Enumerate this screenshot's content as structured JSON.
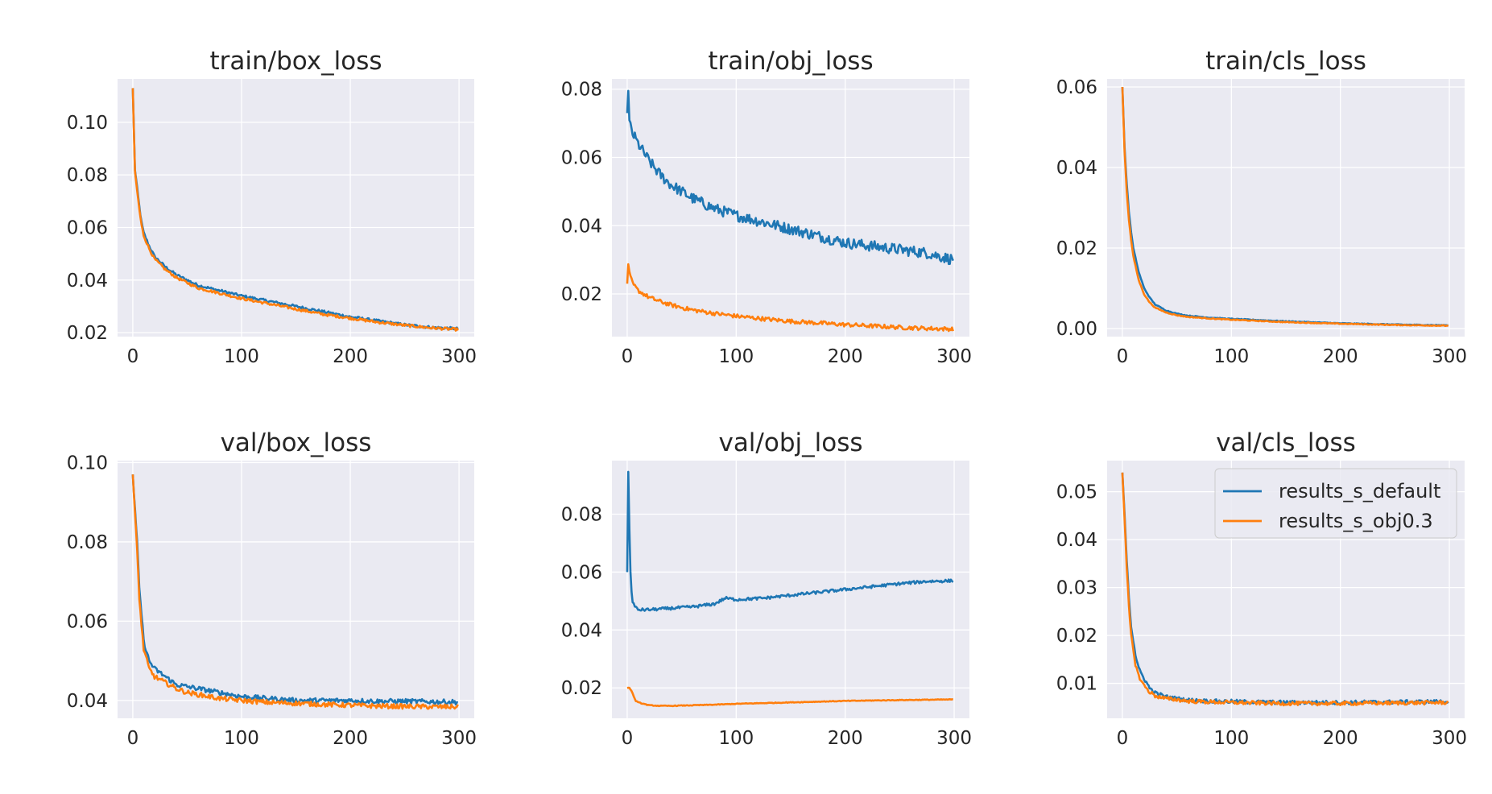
{
  "chart_data": [
    {
      "type": "line",
      "title": "train/box_loss",
      "xlim": [
        -14,
        314
      ],
      "ylim": [
        0.0185,
        0.1165
      ],
      "xticks": [
        0,
        100,
        200,
        300
      ],
      "yticks": [
        0.02,
        0.04,
        0.06,
        0.08,
        0.1
      ],
      "ytick_labels": [
        "0.02",
        "0.04",
        "0.06",
        "0.08",
        "0.10"
      ],
      "grid": true,
      "series": [
        {
          "name": "results_s_default",
          "color": "#1f77b4",
          "noise": 0.0005,
          "x": [
            0,
            2,
            4,
            6,
            8,
            10,
            15,
            20,
            30,
            40,
            50,
            60,
            80,
            100,
            125,
            150,
            175,
            200,
            225,
            250,
            275,
            299
          ],
          "y": [
            0.113,
            0.082,
            0.075,
            0.068,
            0.062,
            0.058,
            0.053,
            0.049,
            0.045,
            0.042,
            0.04,
            0.038,
            0.036,
            0.034,
            0.032,
            0.03,
            0.028,
            0.026,
            0.0245,
            0.023,
            0.022,
            0.0215
          ]
        },
        {
          "name": "results_s_obj0.3",
          "color": "#ff7f0e",
          "noise": 0.0005,
          "x": [
            0,
            2,
            4,
            6,
            8,
            10,
            15,
            20,
            30,
            40,
            50,
            60,
            80,
            100,
            125,
            150,
            175,
            200,
            225,
            250,
            275,
            299
          ],
          "y": [
            0.113,
            0.081,
            0.074,
            0.067,
            0.061,
            0.057,
            0.052,
            0.048,
            0.044,
            0.041,
            0.039,
            0.037,
            0.035,
            0.033,
            0.031,
            0.029,
            0.027,
            0.0255,
            0.024,
            0.0228,
            0.0218,
            0.0212
          ]
        }
      ]
    },
    {
      "type": "line",
      "title": "train/obj_loss",
      "xlim": [
        -14,
        314
      ],
      "ylim": [
        0.0075,
        0.083
      ],
      "xticks": [
        0,
        100,
        200,
        300
      ],
      "yticks": [
        0.02,
        0.04,
        0.06,
        0.08
      ],
      "ytick_labels": [
        "0.02",
        "0.04",
        "0.06",
        "0.08"
      ],
      "grid": true,
      "series": [
        {
          "name": "results_s_default",
          "color": "#1f77b4",
          "noise": 0.0016,
          "x": [
            0,
            1,
            2,
            5,
            10,
            20,
            30,
            40,
            50,
            60,
            80,
            100,
            125,
            150,
            175,
            200,
            225,
            250,
            275,
            299
          ],
          "y": [
            0.073,
            0.079,
            0.07,
            0.067,
            0.064,
            0.059,
            0.055,
            0.052,
            0.05,
            0.048,
            0.045,
            0.043,
            0.041,
            0.039,
            0.037,
            0.035,
            0.034,
            0.033,
            0.032,
            0.03
          ]
        },
        {
          "name": "results_s_obj0.3",
          "color": "#ff7f0e",
          "noise": 0.0006,
          "x": [
            0,
            1,
            2,
            5,
            10,
            20,
            30,
            40,
            50,
            60,
            80,
            100,
            125,
            150,
            175,
            200,
            225,
            250,
            275,
            299
          ],
          "y": [
            0.023,
            0.029,
            0.026,
            0.023,
            0.021,
            0.019,
            0.0178,
            0.0168,
            0.016,
            0.0153,
            0.0143,
            0.0135,
            0.0127,
            0.012,
            0.0115,
            0.011,
            0.0106,
            0.0102,
            0.0099,
            0.0097
          ]
        }
      ]
    },
    {
      "type": "line",
      "title": "train/cls_loss",
      "xlim": [
        -14,
        314
      ],
      "ylim": [
        -0.002,
        0.062
      ],
      "xticks": [
        0,
        100,
        200,
        300
      ],
      "yticks": [
        0.0,
        0.02,
        0.04,
        0.06
      ],
      "ytick_labels": [
        "0.00",
        "0.02",
        "0.04",
        "0.06"
      ],
      "grid": true,
      "series": [
        {
          "name": "results_s_default",
          "color": "#1f77b4",
          "noise": 0.0001,
          "x": [
            0,
            2,
            4,
            6,
            8,
            10,
            15,
            20,
            25,
            30,
            40,
            50,
            60,
            80,
            100,
            150,
            200,
            250,
            299
          ],
          "y": [
            0.06,
            0.045,
            0.036,
            0.029,
            0.024,
            0.02,
            0.014,
            0.01,
            0.0077,
            0.006,
            0.0045,
            0.0037,
            0.0032,
            0.0027,
            0.0024,
            0.0018,
            0.0013,
            0.001,
            0.0008
          ]
        },
        {
          "name": "results_s_obj0.3",
          "color": "#ff7f0e",
          "noise": 0.0001,
          "x": [
            0,
            2,
            4,
            6,
            8,
            10,
            15,
            20,
            25,
            30,
            40,
            50,
            60,
            80,
            100,
            150,
            200,
            250,
            299
          ],
          "y": [
            0.06,
            0.044,
            0.034,
            0.027,
            0.022,
            0.018,
            0.012,
            0.0085,
            0.0065,
            0.0052,
            0.004,
            0.0033,
            0.0029,
            0.0025,
            0.0022,
            0.0016,
            0.0012,
            0.0009,
            0.0007
          ]
        }
      ]
    },
    {
      "type": "line",
      "title": "val/box_loss",
      "xlim": [
        -14,
        314
      ],
      "ylim": [
        0.0355,
        0.1005
      ],
      "xticks": [
        0,
        100,
        200,
        300
      ],
      "yticks": [
        0.04,
        0.06,
        0.08,
        0.1
      ],
      "ytick_labels": [
        "0.04",
        "0.06",
        "0.08",
        "0.10"
      ],
      "grid": true,
      "series": [
        {
          "name": "results_s_default",
          "color": "#1f77b4",
          "noise": 0.0006,
          "x": [
            0,
            2,
            4,
            6,
            8,
            10,
            15,
            20,
            30,
            40,
            50,
            60,
            80,
            100,
            125,
            150,
            175,
            200,
            225,
            250,
            275,
            299
          ],
          "y": [
            0.097,
            0.088,
            0.08,
            0.068,
            0.062,
            0.055,
            0.05,
            0.048,
            0.046,
            0.044,
            0.0435,
            0.043,
            0.042,
            0.041,
            0.0405,
            0.04,
            0.04,
            0.04,
            0.0398,
            0.0398,
            0.0397,
            0.0396
          ]
        },
        {
          "name": "results_s_obj0.3",
          "color": "#ff7f0e",
          "noise": 0.0006,
          "x": [
            0,
            2,
            4,
            6,
            8,
            10,
            15,
            20,
            30,
            40,
            50,
            60,
            80,
            100,
            125,
            150,
            175,
            200,
            225,
            250,
            275,
            299
          ],
          "y": [
            0.097,
            0.087,
            0.078,
            0.066,
            0.059,
            0.053,
            0.048,
            0.046,
            0.0445,
            0.043,
            0.042,
            0.0415,
            0.0405,
            0.04,
            0.0395,
            0.0393,
            0.039,
            0.0388,
            0.0386,
            0.0385,
            0.0384,
            0.0384
          ]
        }
      ]
    },
    {
      "type": "line",
      "title": "val/obj_loss",
      "xlim": [
        -14,
        314
      ],
      "ylim": [
        0.0095,
        0.0985
      ],
      "xticks": [
        0,
        100,
        200,
        300
      ],
      "yticks": [
        0.02,
        0.04,
        0.06,
        0.08
      ],
      "ytick_labels": [
        "0.02",
        "0.04",
        "0.06",
        "0.08"
      ],
      "grid": true,
      "series": [
        {
          "name": "results_s_default",
          "color": "#1f77b4",
          "noise": 0.0005,
          "x": [
            0,
            1,
            2,
            3,
            4,
            5,
            7,
            10,
            20,
            40,
            60,
            80,
            90,
            100,
            125,
            150,
            175,
            200,
            225,
            250,
            275,
            299
          ],
          "y": [
            0.06,
            0.095,
            0.075,
            0.06,
            0.053,
            0.05,
            0.048,
            0.047,
            0.047,
            0.0475,
            0.048,
            0.049,
            0.051,
            0.0505,
            0.051,
            0.052,
            0.053,
            0.054,
            0.055,
            0.056,
            0.0568,
            0.057
          ]
        },
        {
          "name": "results_s_obj0.3",
          "color": "#ff7f0e",
          "noise": 0.00012,
          "x": [
            0,
            2,
            4,
            6,
            8,
            10,
            15,
            20,
            30,
            40,
            60,
            80,
            100,
            150,
            200,
            250,
            299
          ],
          "y": [
            0.02,
            0.02,
            0.019,
            0.017,
            0.0155,
            0.015,
            0.0145,
            0.014,
            0.0138,
            0.0138,
            0.014,
            0.0142,
            0.0145,
            0.015,
            0.0155,
            0.0158,
            0.016
          ]
        }
      ]
    },
    {
      "type": "line",
      "title": "val/cls_loss",
      "xlim": [
        -14,
        314
      ],
      "ylim": [
        0.0027,
        0.0565
      ],
      "xticks": [
        0,
        100,
        200,
        300
      ],
      "yticks": [
        0.01,
        0.02,
        0.03,
        0.04,
        0.05
      ],
      "ytick_labels": [
        "0.01",
        "0.02",
        "0.03",
        "0.04",
        "0.05"
      ],
      "grid": true,
      "legend": {
        "placement": "upper-right",
        "entries": [
          {
            "label": "results_s_default",
            "color": "#1f77b4"
          },
          {
            "label": "results_s_obj0.3",
            "color": "#ff7f0e"
          }
        ]
      },
      "series": [
        {
          "name": "results_s_default",
          "color": "#1f77b4",
          "noise": 0.0004,
          "x": [
            0,
            2,
            4,
            6,
            8,
            10,
            12,
            15,
            20,
            25,
            30,
            40,
            50,
            60,
            80,
            100,
            150,
            200,
            250,
            299
          ],
          "y": [
            0.054,
            0.045,
            0.036,
            0.028,
            0.022,
            0.019,
            0.016,
            0.013,
            0.011,
            0.009,
            0.008,
            0.0072,
            0.0068,
            0.0065,
            0.0063,
            0.0062,
            0.006,
            0.006,
            0.0061,
            0.0062
          ]
        },
        {
          "name": "results_s_obj0.3",
          "color": "#ff7f0e",
          "noise": 0.0004,
          "x": [
            0,
            2,
            4,
            6,
            8,
            10,
            12,
            15,
            20,
            25,
            30,
            40,
            50,
            60,
            80,
            100,
            150,
            200,
            250,
            299
          ],
          "y": [
            0.054,
            0.044,
            0.034,
            0.026,
            0.02,
            0.017,
            0.014,
            0.0115,
            0.0095,
            0.0082,
            0.0074,
            0.0068,
            0.0066,
            0.0063,
            0.0061,
            0.006,
            0.0058,
            0.0058,
            0.0059,
            0.006
          ]
        }
      ]
    }
  ]
}
